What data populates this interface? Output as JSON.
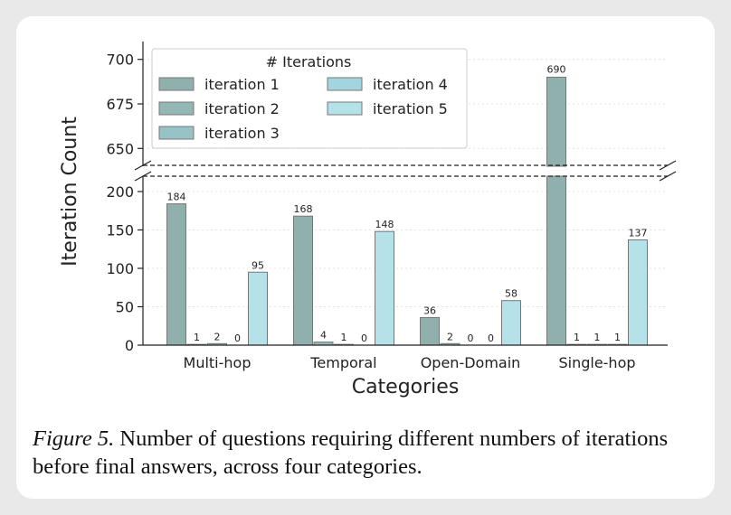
{
  "caption": {
    "figure_label": "Figure 5.",
    "text": "Number of questions requiring different numbers of iterations before final answers, across four categories."
  },
  "colors": {
    "iteration 1": "#8fb0ac",
    "iteration 2": "#93b7b5",
    "iteration 3": "#97c2c6",
    "iteration 4": "#a3d5e0",
    "iteration 5": "#b5e2e9",
    "edge": "#777777"
  },
  "chart_data": {
    "type": "bar",
    "title": "",
    "xlabel": "Categories",
    "ylabel": "Iteration Count",
    "categories": [
      "Multi-hop",
      "Temporal",
      "Open-Domain",
      "Single-hop"
    ],
    "legend": {
      "title": "# Iterations",
      "placement": "top-left",
      "columns": 2
    },
    "broken_y_axis": {
      "upper_range": [
        640,
        710
      ],
      "upper_ticks": [
        650,
        675,
        700
      ],
      "lower_range": [
        0,
        220
      ],
      "lower_ticks": [
        0,
        50,
        100,
        150,
        200
      ]
    },
    "grid": true,
    "series": [
      {
        "name": "iteration 1",
        "values": [
          184,
          168,
          36,
          690
        ]
      },
      {
        "name": "iteration 2",
        "values": [
          1,
          4,
          2,
          1
        ]
      },
      {
        "name": "iteration 3",
        "values": [
          2,
          1,
          0,
          1
        ]
      },
      {
        "name": "iteration 4",
        "values": [
          0,
          0,
          0,
          1
        ]
      },
      {
        "name": "iteration 5",
        "values": [
          95,
          148,
          58,
          137
        ]
      }
    ]
  }
}
